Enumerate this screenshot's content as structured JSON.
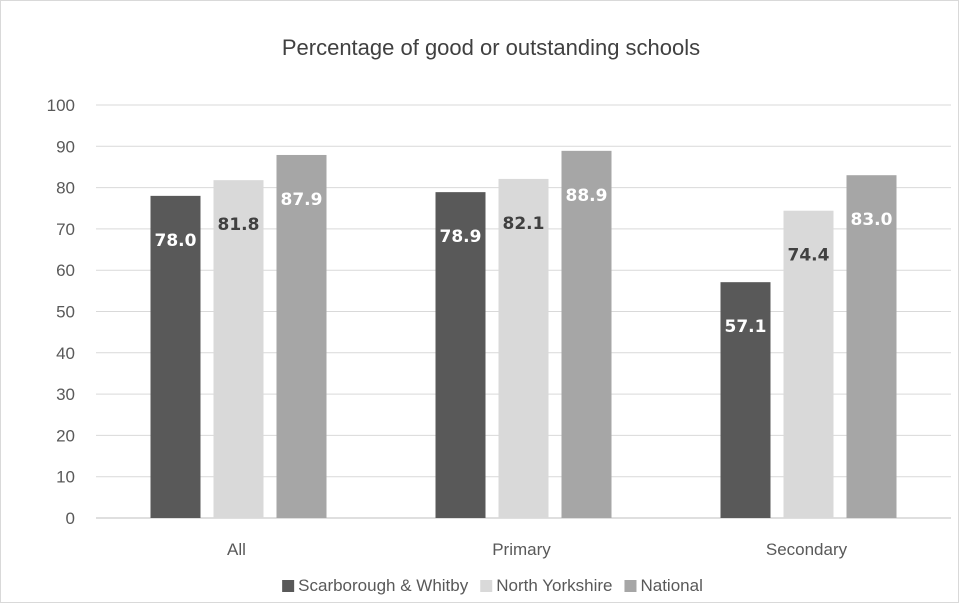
{
  "chart_data": {
    "type": "bar",
    "title": "Percentage of good or outstanding schools",
    "categories": [
      "All",
      "Primary",
      "Secondary"
    ],
    "series": [
      {
        "name": "Scarborough & Whitby",
        "values": [
          78.0,
          78.9,
          57.1
        ],
        "color": "#595959",
        "label_color": "#ffffff"
      },
      {
        "name": "North Yorkshire",
        "values": [
          81.8,
          82.1,
          74.4
        ],
        "color": "#d9d9d9",
        "label_color": "#404040"
      },
      {
        "name": "National",
        "values": [
          87.9,
          88.9,
          83.0
        ],
        "color": "#a6a6a6",
        "label_color": "#ffffff"
      }
    ],
    "ylim": [
      0,
      100
    ],
    "yticks": [
      0,
      10,
      20,
      30,
      40,
      50,
      60,
      70,
      80,
      90,
      100
    ],
    "grid": true,
    "legend_position": "bottom",
    "xlabel": "",
    "ylabel": ""
  }
}
